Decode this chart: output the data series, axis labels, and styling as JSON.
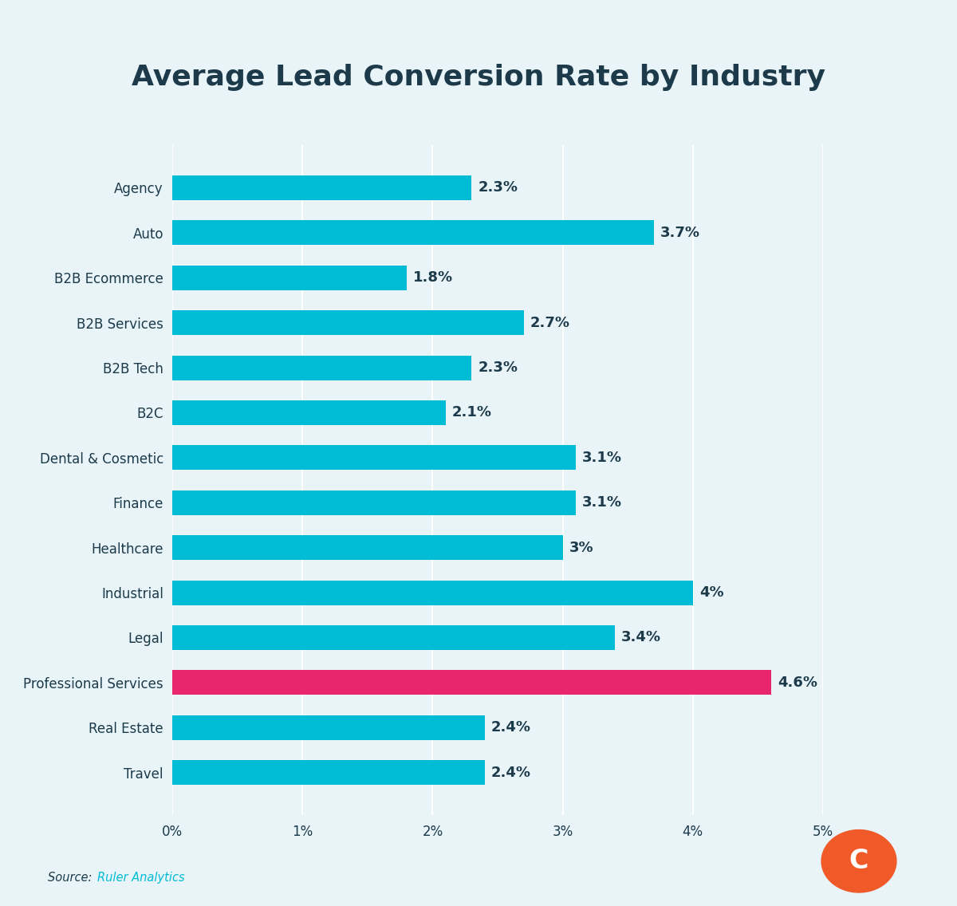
{
  "title": "Average Lead Conversion Rate by Industry",
  "categories": [
    "Agency",
    "Auto",
    "B2B Ecommerce",
    "B2B Services",
    "B2B Tech",
    "B2C",
    "Dental & Cosmetic",
    "Finance",
    "Healthcare",
    "Industrial",
    "Legal",
    "Professional Services",
    "Real Estate",
    "Travel"
  ],
  "values": [
    2.3,
    3.7,
    1.8,
    2.7,
    2.3,
    2.1,
    3.1,
    3.1,
    3.0,
    4.0,
    3.4,
    4.6,
    2.4,
    2.4
  ],
  "bar_colors": [
    "#00BCD4",
    "#00BCD4",
    "#00BCD4",
    "#00BCD4",
    "#00BCD4",
    "#00BCD4",
    "#00BCD4",
    "#00BCD4",
    "#00BCD4",
    "#00BCD4",
    "#00BCD4",
    "#E8266E",
    "#00BCD4",
    "#00BCD4"
  ],
  "label_values": [
    "2.3%",
    "3.7%",
    "1.8%",
    "2.7%",
    "2.3%",
    "2.1%",
    "3.1%",
    "3.1%",
    "3%",
    "4%",
    "3.4%",
    "4.6%",
    "2.4%",
    "2.4%"
  ],
  "xlim": [
    0,
    5
  ],
  "xticks": [
    0,
    1,
    2,
    3,
    4,
    5
  ],
  "xtick_labels": [
    "0%",
    "1%",
    "2%",
    "3%",
    "4%",
    "5%"
  ],
  "background_color": "#E8F4F8",
  "title_color": "#1C3A4A",
  "bar_label_color": "#1C3A4A",
  "ytick_color": "#1C3A4A",
  "xtick_color": "#1C3A4A",
  "source_text": "Source: ",
  "source_link": "Ruler Analytics",
  "source_color": "#1C3A4A",
  "source_link_color": "#00BCD4",
  "title_fontsize": 26,
  "label_fontsize": 13,
  "ytick_fontsize": 12,
  "xtick_fontsize": 12,
  "logo_color": "#F05A28",
  "logo_letter": "C",
  "bar_height": 0.55
}
